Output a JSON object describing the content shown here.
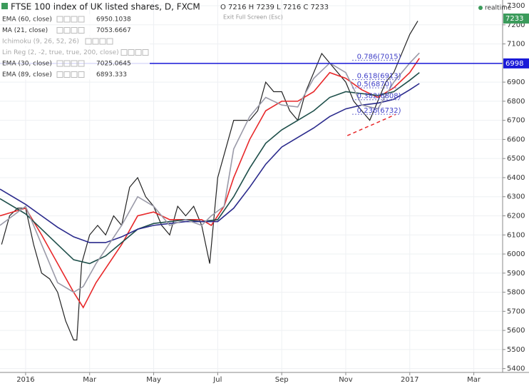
{
  "chart_data": {
    "type": "line",
    "title": "FTSE 100 index of UK listed shares, D, FXCM",
    "ohlc": "O 7216 H 7239 L 7216 C 7233",
    "realtime": "realtime",
    "fullscreen_hint": "Exit Full Screen (Esc)",
    "indicators": [
      {
        "name": "EMA (60, close)",
        "last": 6950.1038
      },
      {
        "name": "MA (21, close)",
        "last": 7053.6667
      },
      {
        "name": "Ichimoku (9, 26, 52, 26)"
      },
      {
        "name": "Lin Reg (2, -2, true, true, 200, close)"
      },
      {
        "name": "EMA (30, close)",
        "last": 7025.0645
      },
      {
        "name": "EMA (89, close)",
        "last": 6893.333
      }
    ],
    "series": [
      {
        "name": "Close",
        "color": "#222222",
        "x": [
          -0.75,
          -0.5,
          -0.25,
          0,
          0.25,
          0.5,
          0.75,
          1,
          1.25,
          1.5,
          1.6,
          1.75,
          2,
          2.25,
          2.5,
          2.75,
          3,
          3.25,
          3.5,
          3.75,
          4,
          4.25,
          4.5,
          4.75,
          5,
          5.25,
          5.5,
          5.75,
          6,
          6.25,
          6.5,
          6.75,
          7,
          7.25,
          7.5,
          7.75,
          8,
          8.25,
          8.5,
          8.75,
          9,
          9.25,
          9.5,
          9.75,
          10,
          10.25,
          10.5,
          10.75,
          11,
          11.25,
          11.5,
          11.75,
          12,
          12.25
        ],
        "values": [
          6050,
          6200,
          6240,
          6240,
          6050,
          5900,
          5870,
          5800,
          5650,
          5550,
          5550,
          5950,
          6100,
          6150,
          6100,
          6200,
          6150,
          6350,
          6400,
          6300,
          6250,
          6150,
          6100,
          6250,
          6200,
          6250,
          6150,
          5950,
          6400,
          6550,
          6700,
          6700,
          6700,
          6750,
          6900,
          6850,
          6850,
          6750,
          6700,
          6850,
          6950,
          7050,
          7000,
          6950,
          6900,
          6800,
          6750,
          6700,
          6800,
          6900,
          6950,
          7050,
          7150,
          7220
        ]
      },
      {
        "name": "EMA (30, close)",
        "color": "#e8282a",
        "x": [
          -0.8,
          0,
          0.5,
          1,
          1.5,
          1.8,
          2.2,
          3,
          3.5,
          4,
          4.5,
          5,
          5.5,
          5.8,
          6.2,
          6.5,
          7,
          7.5,
          8,
          8.5,
          9,
          9.5,
          10,
          10.5,
          11,
          11.5,
          12,
          12.3
        ],
        "values": [
          6200,
          6240,
          6100,
          5950,
          5800,
          5720,
          5850,
          6050,
          6200,
          6220,
          6180,
          6180,
          6180,
          6150,
          6250,
          6400,
          6600,
          6750,
          6800,
          6800,
          6850,
          6950,
          6920,
          6860,
          6820,
          6870,
          6950,
          7025
        ]
      },
      {
        "name": "EMA (60, close)",
        "color": "#1e4f4a",
        "x": [
          -0.8,
          0,
          0.5,
          1,
          1.5,
          2,
          2.5,
          3,
          3.5,
          4,
          4.5,
          5,
          5.5,
          6,
          6.5,
          7,
          7.5,
          8,
          8.5,
          9,
          9.5,
          10,
          10.5,
          11,
          11.5,
          12,
          12.3
        ],
        "values": [
          6290,
          6210,
          6130,
          6050,
          5970,
          5950,
          5990,
          6060,
          6130,
          6160,
          6170,
          6180,
          6170,
          6180,
          6300,
          6450,
          6580,
          6650,
          6700,
          6750,
          6820,
          6850,
          6840,
          6830,
          6850,
          6910,
          6950
        ]
      },
      {
        "name": "EMA (89, close)",
        "color": "#2a2a8c",
        "x": [
          -0.8,
          0,
          0.5,
          1,
          1.5,
          2,
          2.5,
          3,
          3.5,
          4,
          4.5,
          5,
          5.5,
          6,
          6.5,
          7,
          7.5,
          8,
          8.5,
          9,
          9.5,
          10,
          10.5,
          11,
          11.5,
          12,
          12.3
        ],
        "values": [
          6340,
          6260,
          6200,
          6140,
          6090,
          6060,
          6060,
          6090,
          6130,
          6150,
          6160,
          6170,
          6170,
          6170,
          6240,
          6350,
          6470,
          6560,
          6610,
          6660,
          6720,
          6760,
          6780,
          6790,
          6810,
          6860,
          6893
        ]
      },
      {
        "name": "MA (21, close)",
        "color": "#9a9aa8",
        "x": [
          -0.8,
          0,
          0.5,
          1,
          1.5,
          1.8,
          2.2,
          3,
          3.5,
          4,
          4.5,
          5,
          5.5,
          5.8,
          6.2,
          6.5,
          7,
          7.5,
          8,
          8.5,
          9,
          9.5,
          10,
          10.5,
          11,
          11.5,
          12,
          12.3
        ],
        "values": [
          6150,
          6250,
          6050,
          5850,
          5800,
          5830,
          5950,
          6150,
          6300,
          6250,
          6150,
          6180,
          6150,
          6200,
          6250,
          6550,
          6720,
          6820,
          6780,
          6770,
          6920,
          7000,
          6950,
          6780,
          6760,
          6900,
          7000,
          7053
        ]
      }
    ],
    "hline": {
      "value": 6998,
      "color": "#1a1ad8"
    },
    "last_price": {
      "value": 7233,
      "color": "#3b9b5b"
    },
    "fib_levels": [
      {
        "value": 7015,
        "label": "0.786(7015)"
      },
      {
        "value": 6913,
        "label": "0.618(6913)"
      },
      {
        "value": 6870,
        "label": "0.5(6870)"
      },
      {
        "value": 6808,
        "label": "0.382(6808)"
      },
      {
        "value": 6732,
        "label": "0.236(6732)"
      }
    ],
    "trendline": {
      "x": [
        10.05,
        11.55
      ],
      "values": [
        6620,
        6730
      ],
      "color": "#e8282a"
    },
    "xlim": [
      -0.8,
      14.9
    ],
    "ylim": [
      5380,
      7330
    ],
    "xticks": [
      {
        "value": 0,
        "label": "2016"
      },
      {
        "value": 2,
        "label": "Mar"
      },
      {
        "value": 4,
        "label": "May"
      },
      {
        "value": 6,
        "label": "Jul"
      },
      {
        "value": 8,
        "label": "Sep"
      },
      {
        "value": 10,
        "label": "Nov"
      },
      {
        "value": 12,
        "label": "2017"
      },
      {
        "value": 14,
        "label": "Mar"
      }
    ],
    "yticks": [
      5400,
      5500,
      5600,
      5700,
      5800,
      5900,
      6000,
      6100,
      6200,
      6300,
      6400,
      6500,
      6600,
      6700,
      6800,
      6900,
      7000,
      7100,
      7200,
      7300
    ],
    "grid": true
  }
}
